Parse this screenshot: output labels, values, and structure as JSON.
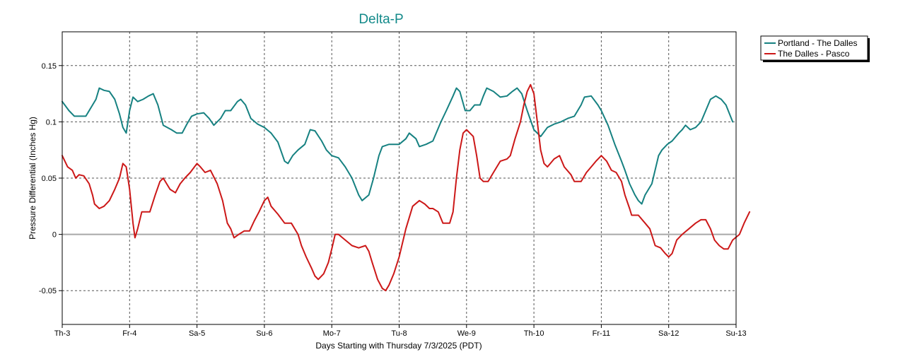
{
  "chart_data": {
    "type": "line",
    "title": "Delta-P",
    "xlabel": "Days Starting with Thursday 7/3/2025 (PDT)",
    "ylabel": "Pressure Differential (Inches Hg)",
    "x_ticks": [
      "Th-3",
      "Fr-4",
      "Sa-5",
      "Su-6",
      "Mo-7",
      "Tu-8",
      "We-9",
      "Th-10",
      "Fr-11",
      "Sa-12",
      "Su-13"
    ],
    "xlim": [
      0,
      10
    ],
    "ylim": [
      -0.08,
      0.18
    ],
    "y_ticks": [
      -0.05,
      0,
      0.05,
      0.1,
      0.15
    ],
    "y_tick_labels": [
      "-0.05",
      "0",
      "0.05",
      "0.1",
      "0.15"
    ],
    "grid": true,
    "zero_line": true,
    "legend_position": "top-right",
    "title_color": "#138a8a",
    "series": [
      {
        "name": "Portland - The Dalles",
        "color": "#168181",
        "points": [
          [
            0,
            0.118
          ],
          [
            0.1,
            0.11
          ],
          [
            0.18,
            0.105
          ],
          [
            0.35,
            0.105
          ],
          [
            0.5,
            0.12
          ],
          [
            0.55,
            0.13
          ],
          [
            0.62,
            0.128
          ],
          [
            0.7,
            0.127
          ],
          [
            0.78,
            0.12
          ],
          [
            0.85,
            0.107
          ],
          [
            0.9,
            0.095
          ],
          [
            0.95,
            0.09
          ],
          [
            1.0,
            0.11
          ],
          [
            1.05,
            0.122
          ],
          [
            1.12,
            0.118
          ],
          [
            1.2,
            0.12
          ],
          [
            1.28,
            0.123
          ],
          [
            1.35,
            0.125
          ],
          [
            1.42,
            0.115
          ],
          [
            1.5,
            0.097
          ],
          [
            1.62,
            0.093
          ],
          [
            1.7,
            0.09
          ],
          [
            1.78,
            0.09
          ],
          [
            1.85,
            0.098
          ],
          [
            1.92,
            0.105
          ],
          [
            2.0,
            0.107
          ],
          [
            2.1,
            0.108
          ],
          [
            2.18,
            0.103
          ],
          [
            2.25,
            0.097
          ],
          [
            2.35,
            0.103
          ],
          [
            2.42,
            0.11
          ],
          [
            2.5,
            0.11
          ],
          [
            2.6,
            0.118
          ],
          [
            2.65,
            0.12
          ],
          [
            2.72,
            0.115
          ],
          [
            2.8,
            0.103
          ],
          [
            2.9,
            0.098
          ],
          [
            3.0,
            0.095
          ],
          [
            3.1,
            0.09
          ],
          [
            3.2,
            0.082
          ],
          [
            3.3,
            0.065
          ],
          [
            3.35,
            0.063
          ],
          [
            3.42,
            0.07
          ],
          [
            3.5,
            0.075
          ],
          [
            3.6,
            0.08
          ],
          [
            3.68,
            0.093
          ],
          [
            3.75,
            0.092
          ],
          [
            3.85,
            0.083
          ],
          [
            3.92,
            0.075
          ],
          [
            4.0,
            0.07
          ],
          [
            4.1,
            0.068
          ],
          [
            4.2,
            0.06
          ],
          [
            4.3,
            0.05
          ],
          [
            4.4,
            0.035
          ],
          [
            4.45,
            0.03
          ],
          [
            4.55,
            0.035
          ],
          [
            4.62,
            0.05
          ],
          [
            4.7,
            0.07
          ],
          [
            4.75,
            0.078
          ],
          [
            4.85,
            0.08
          ],
          [
            5.0,
            0.08
          ],
          [
            5.1,
            0.085
          ],
          [
            5.15,
            0.09
          ],
          [
            5.25,
            0.085
          ],
          [
            5.3,
            0.078
          ],
          [
            5.4,
            0.08
          ],
          [
            5.5,
            0.083
          ],
          [
            5.55,
            0.09
          ],
          [
            5.62,
            0.1
          ],
          [
            5.7,
            0.11
          ],
          [
            5.8,
            0.123
          ],
          [
            5.85,
            0.13
          ],
          [
            5.9,
            0.127
          ],
          [
            5.98,
            0.11
          ],
          [
            6.05,
            0.11
          ],
          [
            6.12,
            0.115
          ],
          [
            6.2,
            0.115
          ],
          [
            6.25,
            0.123
          ],
          [
            6.3,
            0.13
          ],
          [
            6.4,
            0.127
          ],
          [
            6.5,
            0.122
          ],
          [
            6.6,
            0.123
          ],
          [
            6.68,
            0.127
          ],
          [
            6.75,
            0.13
          ],
          [
            6.82,
            0.125
          ],
          [
            6.9,
            0.11
          ],
          [
            7.0,
            0.093
          ],
          [
            7.1,
            0.087
          ],
          [
            7.2,
            0.095
          ],
          [
            7.3,
            0.098
          ],
          [
            7.4,
            0.1
          ],
          [
            7.5,
            0.103
          ],
          [
            7.6,
            0.105
          ],
          [
            7.7,
            0.115
          ],
          [
            7.75,
            0.122
          ],
          [
            7.85,
            0.123
          ],
          [
            7.95,
            0.115
          ],
          [
            8.0,
            0.11
          ],
          [
            8.1,
            0.097
          ],
          [
            8.2,
            0.08
          ],
          [
            8.3,
            0.065
          ],
          [
            8.35,
            0.057
          ],
          [
            8.42,
            0.045
          ],
          [
            8.5,
            0.035
          ],
          [
            8.55,
            0.03
          ],
          [
            8.6,
            0.027
          ],
          [
            8.65,
            0.035
          ],
          [
            8.75,
            0.045
          ],
          [
            8.85,
            0.07
          ],
          [
            8.9,
            0.075
          ],
          [
            8.98,
            0.08
          ],
          [
            9.05,
            0.083
          ],
          [
            9.15,
            0.09
          ],
          [
            9.2,
            0.093
          ],
          [
            9.25,
            0.097
          ],
          [
            9.32,
            0.093
          ],
          [
            9.4,
            0.095
          ],
          [
            9.48,
            0.1
          ],
          [
            9.55,
            0.11
          ],
          [
            9.62,
            0.12
          ],
          [
            9.7,
            0.123
          ],
          [
            9.78,
            0.12
          ],
          [
            9.85,
            0.115
          ],
          [
            9.95,
            0.1
          ]
        ]
      },
      {
        "name": "The Dalles - Pasco",
        "color": "#cc1818",
        "points": [
          [
            0,
            0.07
          ],
          [
            0.08,
            0.06
          ],
          [
            0.15,
            0.057
          ],
          [
            0.2,
            0.05
          ],
          [
            0.25,
            0.053
          ],
          [
            0.32,
            0.052
          ],
          [
            0.4,
            0.045
          ],
          [
            0.45,
            0.035
          ],
          [
            0.48,
            0.027
          ],
          [
            0.55,
            0.023
          ],
          [
            0.62,
            0.025
          ],
          [
            0.7,
            0.03
          ],
          [
            0.78,
            0.04
          ],
          [
            0.85,
            0.05
          ],
          [
            0.9,
            0.063
          ],
          [
            0.95,
            0.06
          ],
          [
            1.0,
            0.04
          ],
          [
            1.05,
            0.01
          ],
          [
            1.08,
            -0.003
          ],
          [
            1.12,
            0.005
          ],
          [
            1.18,
            0.02
          ],
          [
            1.3,
            0.02
          ],
          [
            1.38,
            0.035
          ],
          [
            1.45,
            0.047
          ],
          [
            1.5,
            0.05
          ],
          [
            1.55,
            0.045
          ],
          [
            1.6,
            0.04
          ],
          [
            1.68,
            0.037
          ],
          [
            1.75,
            0.045
          ],
          [
            1.82,
            0.05
          ],
          [
            1.9,
            0.055
          ],
          [
            2.0,
            0.063
          ],
          [
            2.05,
            0.06
          ],
          [
            2.12,
            0.055
          ],
          [
            2.2,
            0.057
          ],
          [
            2.3,
            0.045
          ],
          [
            2.38,
            0.03
          ],
          [
            2.45,
            0.01
          ],
          [
            2.5,
            0.005
          ],
          [
            2.55,
            -0.003
          ],
          [
            2.62,
            0.0
          ],
          [
            2.7,
            0.003
          ],
          [
            2.78,
            0.003
          ],
          [
            2.85,
            0.012
          ],
          [
            2.92,
            0.02
          ],
          [
            3.0,
            0.03
          ],
          [
            3.05,
            0.033
          ],
          [
            3.1,
            0.025
          ],
          [
            3.2,
            0.018
          ],
          [
            3.3,
            0.01
          ],
          [
            3.4,
            0.01
          ],
          [
            3.5,
            0.0
          ],
          [
            3.55,
            -0.01
          ],
          [
            3.62,
            -0.02
          ],
          [
            3.7,
            -0.03
          ],
          [
            3.75,
            -0.037
          ],
          [
            3.8,
            -0.04
          ],
          [
            3.88,
            -0.035
          ],
          [
            3.95,
            -0.025
          ],
          [
            4.0,
            -0.013
          ],
          [
            4.05,
            0.0
          ],
          [
            4.1,
            0.0
          ],
          [
            4.2,
            -0.005
          ],
          [
            4.3,
            -0.01
          ],
          [
            4.4,
            -0.012
          ],
          [
            4.5,
            -0.01
          ],
          [
            4.55,
            -0.015
          ],
          [
            4.6,
            -0.025
          ],
          [
            4.68,
            -0.04
          ],
          [
            4.75,
            -0.048
          ],
          [
            4.8,
            -0.05
          ],
          [
            4.85,
            -0.045
          ],
          [
            4.92,
            -0.035
          ],
          [
            5.0,
            -0.02
          ],
          [
            5.1,
            0.005
          ],
          [
            5.2,
            0.025
          ],
          [
            5.3,
            0.03
          ],
          [
            5.38,
            0.027
          ],
          [
            5.45,
            0.023
          ],
          [
            5.5,
            0.023
          ],
          [
            5.58,
            0.02
          ],
          [
            5.65,
            0.01
          ],
          [
            5.75,
            0.01
          ],
          [
            5.8,
            0.02
          ],
          [
            5.85,
            0.05
          ],
          [
            5.9,
            0.075
          ],
          [
            5.95,
            0.09
          ],
          [
            6.0,
            0.093
          ],
          [
            6.05,
            0.09
          ],
          [
            6.1,
            0.087
          ],
          [
            6.15,
            0.07
          ],
          [
            6.2,
            0.05
          ],
          [
            6.25,
            0.047
          ],
          [
            6.32,
            0.047
          ],
          [
            6.4,
            0.055
          ],
          [
            6.5,
            0.065
          ],
          [
            6.6,
            0.067
          ],
          [
            6.65,
            0.07
          ],
          [
            6.72,
            0.085
          ],
          [
            6.8,
            0.1
          ],
          [
            6.85,
            0.115
          ],
          [
            6.9,
            0.127
          ],
          [
            6.95,
            0.133
          ],
          [
            7.0,
            0.125
          ],
          [
            7.05,
            0.1
          ],
          [
            7.1,
            0.075
          ],
          [
            7.15,
            0.063
          ],
          [
            7.2,
            0.06
          ],
          [
            7.3,
            0.067
          ],
          [
            7.38,
            0.07
          ],
          [
            7.45,
            0.06
          ],
          [
            7.55,
            0.053
          ],
          [
            7.6,
            0.047
          ],
          [
            7.7,
            0.047
          ],
          [
            7.78,
            0.055
          ],
          [
            7.85,
            0.06
          ],
          [
            7.92,
            0.065
          ],
          [
            8.0,
            0.07
          ],
          [
            8.08,
            0.065
          ],
          [
            8.15,
            0.057
          ],
          [
            8.22,
            0.055
          ],
          [
            8.3,
            0.047
          ],
          [
            8.35,
            0.035
          ],
          [
            8.42,
            0.023
          ],
          [
            8.45,
            0.017
          ],
          [
            8.55,
            0.017
          ],
          [
            8.65,
            0.01
          ],
          [
            8.72,
            0.005
          ],
          [
            8.8,
            -0.01
          ],
          [
            8.88,
            -0.012
          ],
          [
            8.95,
            -0.017
          ],
          [
            9.0,
            -0.02
          ],
          [
            9.05,
            -0.017
          ],
          [
            9.12,
            -0.005
          ],
          [
            9.2,
            0.0
          ],
          [
            9.3,
            0.005
          ],
          [
            9.4,
            0.01
          ],
          [
            9.48,
            0.013
          ],
          [
            9.55,
            0.013
          ],
          [
            9.62,
            0.005
          ],
          [
            9.68,
            -0.005
          ],
          [
            9.75,
            -0.01
          ],
          [
            9.82,
            -0.013
          ],
          [
            9.88,
            -0.013
          ],
          [
            9.95,
            -0.005
          ],
          [
            10.05,
            0.0
          ],
          [
            10.12,
            0.01
          ],
          [
            10.2,
            0.02
          ]
        ]
      }
    ]
  }
}
